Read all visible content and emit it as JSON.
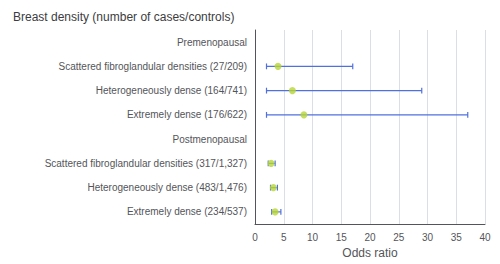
{
  "chart_data": {
    "type": "forest",
    "title": "Breast density (number of cases/controls)",
    "xlabel": "Odds ratio",
    "xlim": [
      0,
      40
    ],
    "xticks": [
      0,
      5,
      10,
      15,
      20,
      25,
      30,
      35,
      40
    ],
    "categories": [
      "Premenopausal",
      "Scattered fibroglandular densities (27/209)",
      "Heterogeneously dense (164/741)",
      "Extremely dense (176/622)",
      "Postmenopausal",
      "Scattered fibroglandular densities (317/1,327)",
      "Heterogeneously dense (483/1,476)",
      "Extremely dense (234/537)"
    ],
    "values": [
      null,
      4.0,
      6.5,
      8.5,
      null,
      2.8,
      3.2,
      3.5
    ],
    "ci_low": [
      null,
      2.0,
      2.0,
      2.0,
      null,
      2.3,
      2.7,
      2.9
    ],
    "ci_high": [
      null,
      17.0,
      29.0,
      37.0,
      null,
      3.5,
      3.9,
      4.5
    ],
    "grid": true
  }
}
